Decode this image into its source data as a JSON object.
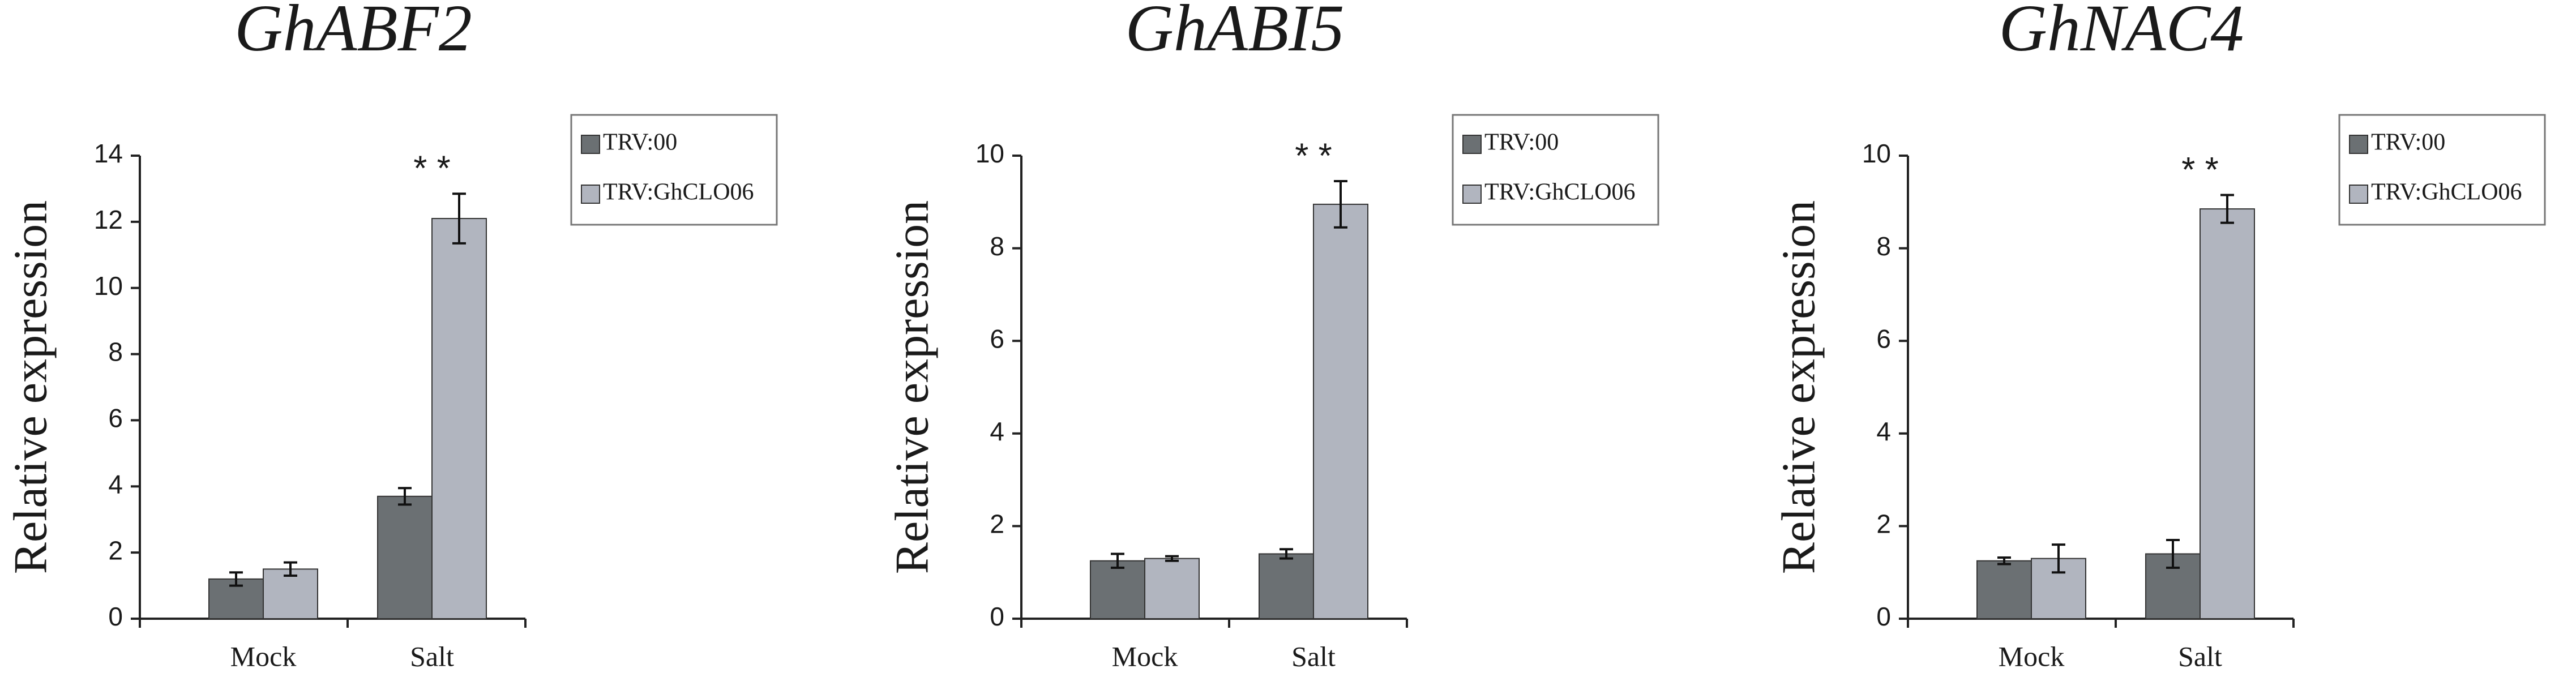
{
  "chart_data": [
    {
      "type": "bar",
      "title": "GhABF2",
      "y_label": "Relative expression",
      "categories": [
        "Mock",
        "Salt"
      ],
      "series": [
        {
          "name": "TRV:00",
          "color": "#6b7073",
          "values": [
            1.2,
            3.7
          ],
          "errors": [
            0.2,
            0.25
          ]
        },
        {
          "name": "TRV:GhCLO06",
          "color": "#b1b5bf",
          "values": [
            1.5,
            12.1
          ],
          "errors": [
            0.2,
            0.75
          ]
        }
      ],
      "annotation": "* *",
      "ylim": [
        0,
        14
      ],
      "yticks": [
        0,
        2,
        4,
        6,
        8,
        10,
        12,
        14
      ]
    },
    {
      "type": "bar",
      "title": "GhABI5",
      "y_label": "Relative expression",
      "categories": [
        "Mock",
        "Salt"
      ],
      "series": [
        {
          "name": "TRV:00",
          "color": "#6b7073",
          "values": [
            1.25,
            1.4
          ],
          "errors": [
            0.15,
            0.1
          ]
        },
        {
          "name": "TRV:GhCLO06",
          "color": "#b1b5bf",
          "values": [
            1.3,
            8.95
          ],
          "errors": [
            0.05,
            0.5
          ]
        }
      ],
      "annotation": "* *",
      "ylim": [
        0,
        10
      ],
      "yticks": [
        0,
        2,
        4,
        6,
        8,
        10
      ]
    },
    {
      "type": "bar",
      "title": "GhNAC4",
      "y_label": "Relative expression",
      "categories": [
        "Mock",
        "Salt"
      ],
      "series": [
        {
          "name": "TRV:00",
          "color": "#6b7073",
          "values": [
            1.25,
            1.4
          ],
          "errors": [
            0.07,
            0.3
          ]
        },
        {
          "name": "TRV:GhCLO06",
          "color": "#b1b5bf",
          "values": [
            1.3,
            8.85
          ],
          "errors": [
            0.3,
            0.3
          ]
        }
      ],
      "annotation": "* *",
      "ylim": [
        0,
        10
      ],
      "yticks": [
        0,
        2,
        4,
        6,
        8,
        10
      ]
    }
  ]
}
